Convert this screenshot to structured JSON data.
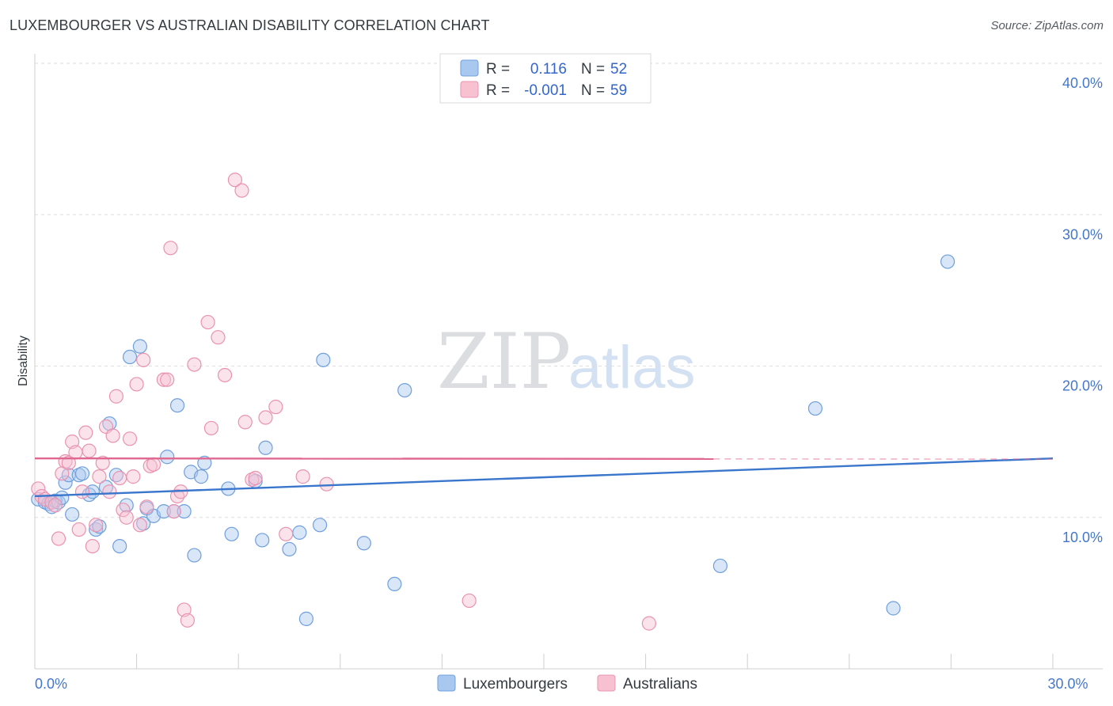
{
  "header": {
    "title": "LUXEMBOURGER VS AUSTRALIAN DISABILITY CORRELATION CHART",
    "source": "Source: ZipAtlas.com"
  },
  "watermark": {
    "zip": "ZIP",
    "atlas": "atlas"
  },
  "legend": {
    "rows": [
      {
        "r_label": "R =",
        "r_value": "0.116",
        "n_label": "N =",
        "n_value": "52"
      },
      {
        "r_label": "R =",
        "r_value": "-0.001",
        "n_label": "N =",
        "n_value": "59"
      }
    ]
  },
  "chart_data": {
    "type": "scatter",
    "ylabel": "Disability",
    "xlim": [
      0,
      30
    ],
    "ylim": [
      0,
      40
    ],
    "y_ticks": [
      {
        "value": 10,
        "label": "10.0%"
      },
      {
        "value": 20,
        "label": "20.0%"
      },
      {
        "value": 30,
        "label": "30.0%"
      },
      {
        "value": 40,
        "label": "40.0%"
      }
    ],
    "x_tick_labels": [
      {
        "value": 0,
        "label": "0.0%"
      },
      {
        "value": 30,
        "label": "30.0%"
      }
    ],
    "grid": true,
    "legend_position": "top-center",
    "series": [
      {
        "name": "Luxembourgers",
        "color": "#a9c8f0",
        "edge": "#6f9fdc",
        "line_color": "#3a76cc",
        "trend": {
          "x0": 0,
          "y0": 11.4,
          "x1": 30,
          "y1": 13.9,
          "dashed_from": null
        },
        "points": [
          [
            0.1,
            11.2
          ],
          [
            0.3,
            11.0
          ],
          [
            0.4,
            10.9
          ],
          [
            0.5,
            10.7
          ],
          [
            0.6,
            11.1
          ],
          [
            0.7,
            11.0
          ],
          [
            0.8,
            11.3
          ],
          [
            0.9,
            12.3
          ],
          [
            1.0,
            12.8
          ],
          [
            1.1,
            10.2
          ],
          [
            1.3,
            12.8
          ],
          [
            1.4,
            12.9
          ],
          [
            1.6,
            11.5
          ],
          [
            1.7,
            11.7
          ],
          [
            1.8,
            9.2
          ],
          [
            1.9,
            9.4
          ],
          [
            2.1,
            12.0
          ],
          [
            2.2,
            16.2
          ],
          [
            2.4,
            12.8
          ],
          [
            2.5,
            8.1
          ],
          [
            2.7,
            10.8
          ],
          [
            2.8,
            20.6
          ],
          [
            3.1,
            21.3
          ],
          [
            3.2,
            9.6
          ],
          [
            3.3,
            10.6
          ],
          [
            3.5,
            10.1
          ],
          [
            3.8,
            10.4
          ],
          [
            3.9,
            14.0
          ],
          [
            4.1,
            10.4
          ],
          [
            4.2,
            17.4
          ],
          [
            4.4,
            10.4
          ],
          [
            4.6,
            13.0
          ],
          [
            4.7,
            7.5
          ],
          [
            4.9,
            12.7
          ],
          [
            5.0,
            13.6
          ],
          [
            5.7,
            11.9
          ],
          [
            5.8,
            8.9
          ],
          [
            6.5,
            12.4
          ],
          [
            6.7,
            8.5
          ],
          [
            6.8,
            14.6
          ],
          [
            7.5,
            7.9
          ],
          [
            7.8,
            9.0
          ],
          [
            8.0,
            3.3
          ],
          [
            8.4,
            9.5
          ],
          [
            8.5,
            20.4
          ],
          [
            9.7,
            8.3
          ],
          [
            10.6,
            5.6
          ],
          [
            10.9,
            18.4
          ],
          [
            20.2,
            6.8
          ],
          [
            23.0,
            17.2
          ],
          [
            25.3,
            4.0
          ],
          [
            26.9,
            26.9
          ]
        ]
      },
      {
        "name": "Australians",
        "color": "#f7c1d2",
        "edge": "#e993b0",
        "line_color": "#e06890",
        "trend": {
          "x0": 0,
          "y0": 13.9,
          "x1": 30,
          "y1": 13.85,
          "dashed_from": 20.0
        },
        "points": [
          [
            0.1,
            11.9
          ],
          [
            0.2,
            11.4
          ],
          [
            0.3,
            11.2
          ],
          [
            0.5,
            11.0
          ],
          [
            0.6,
            10.8
          ],
          [
            0.7,
            8.6
          ],
          [
            0.8,
            12.9
          ],
          [
            0.9,
            13.7
          ],
          [
            1.0,
            13.6
          ],
          [
            1.1,
            15.0
          ],
          [
            1.2,
            14.3
          ],
          [
            1.3,
            9.2
          ],
          [
            1.4,
            11.7
          ],
          [
            1.5,
            15.6
          ],
          [
            1.6,
            14.4
          ],
          [
            1.7,
            8.1
          ],
          [
            1.8,
            9.5
          ],
          [
            1.9,
            12.7
          ],
          [
            2.0,
            13.6
          ],
          [
            2.1,
            16.0
          ],
          [
            2.2,
            11.7
          ],
          [
            2.3,
            15.4
          ],
          [
            2.4,
            18.0
          ],
          [
            2.5,
            12.6
          ],
          [
            2.6,
            10.5
          ],
          [
            2.7,
            10.0
          ],
          [
            2.8,
            15.2
          ],
          [
            2.9,
            12.7
          ],
          [
            3.0,
            18.8
          ],
          [
            3.1,
            9.5
          ],
          [
            3.2,
            20.4
          ],
          [
            3.3,
            10.7
          ],
          [
            3.4,
            13.4
          ],
          [
            3.5,
            13.5
          ],
          [
            3.8,
            19.1
          ],
          [
            3.9,
            19.1
          ],
          [
            4.0,
            27.8
          ],
          [
            4.1,
            10.4
          ],
          [
            4.2,
            11.4
          ],
          [
            4.3,
            11.7
          ],
          [
            4.4,
            3.9
          ],
          [
            4.5,
            3.2
          ],
          [
            4.7,
            20.1
          ],
          [
            5.1,
            22.9
          ],
          [
            5.2,
            15.9
          ],
          [
            5.4,
            21.9
          ],
          [
            5.6,
            19.4
          ],
          [
            5.9,
            32.3
          ],
          [
            6.1,
            31.6
          ],
          [
            6.2,
            16.3
          ],
          [
            6.4,
            12.5
          ],
          [
            6.5,
            12.6
          ],
          [
            6.8,
            16.6
          ],
          [
            7.1,
            17.3
          ],
          [
            7.4,
            8.9
          ],
          [
            7.9,
            12.7
          ],
          [
            8.6,
            12.2
          ],
          [
            12.8,
            4.5
          ],
          [
            18.1,
            3.0
          ]
        ]
      }
    ]
  }
}
